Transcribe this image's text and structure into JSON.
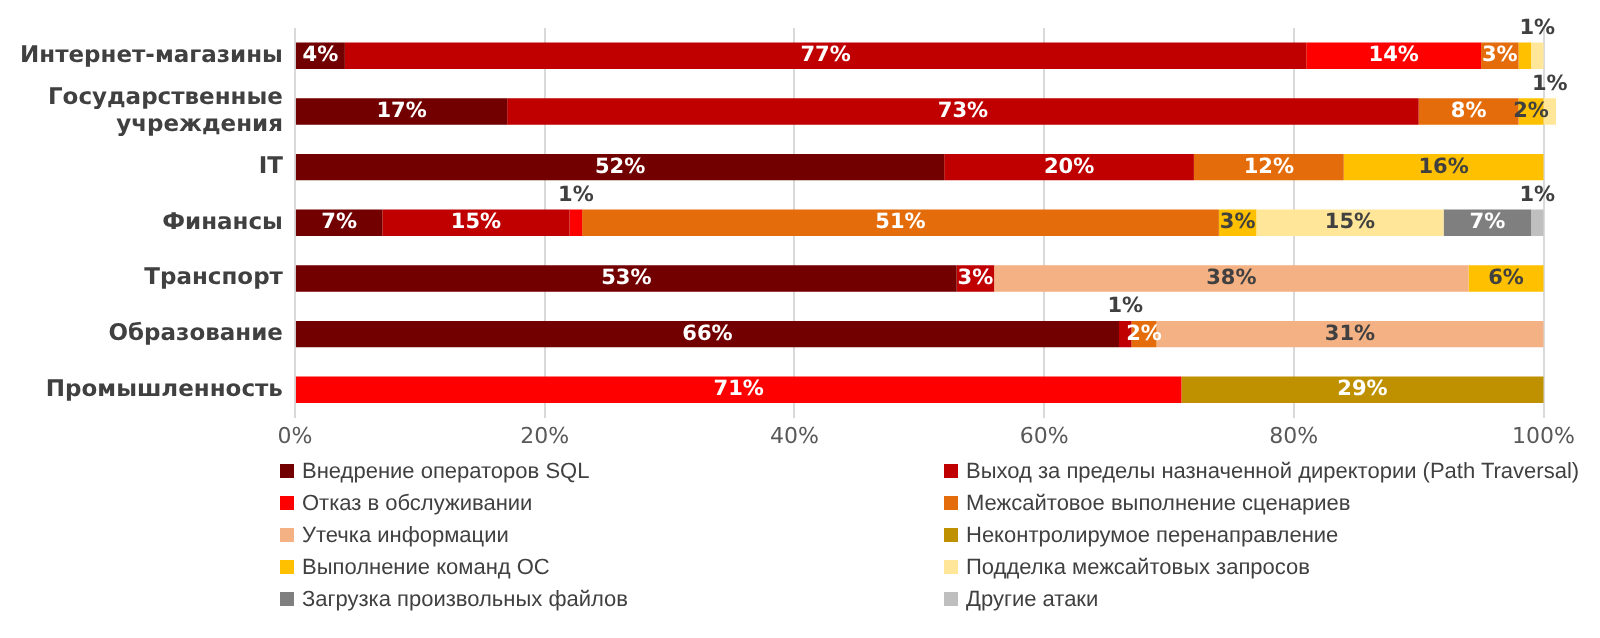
{
  "chart_data": {
    "type": "bar",
    "orientation": "horizontal",
    "stacked": true,
    "categories": [
      "Интернет-магазины",
      "Государственные учреждения",
      "IT",
      "Финансы",
      "Транспорт",
      "Образование",
      "Промышленность"
    ],
    "series": [
      {
        "name": "Внедрение операторов SQL",
        "color": "#720000",
        "values": [
          4,
          17,
          52,
          7,
          53,
          66,
          null
        ],
        "value_labels": [
          "4%",
          "17%",
          "52%",
          "7%",
          "53%",
          "66%",
          null
        ]
      },
      {
        "name": "Выход за пределы назначенной директории (Path Traversal)",
        "color": "#c00000",
        "values": [
          77,
          73,
          20,
          15,
          3,
          1,
          null
        ],
        "value_labels": [
          "77%",
          "73%",
          "20%",
          "15%",
          "3%",
          "1%",
          null
        ]
      },
      {
        "name": "Отказ в обслуживании",
        "color": "#ff0000",
        "values": [
          14,
          null,
          null,
          1,
          null,
          null,
          71
        ],
        "value_labels": [
          "14%",
          null,
          null,
          "1%",
          null,
          null,
          "71%"
        ]
      },
      {
        "name": "Межсайтовое выполнение сценариев",
        "color": "#e46c0a",
        "values": [
          3,
          8,
          12,
          51,
          null,
          2,
          null
        ],
        "value_labels": [
          "3%",
          "8%",
          "12%",
          "51%",
          null,
          "2%",
          null
        ]
      },
      {
        "name": "Утечка информации",
        "color": "#f4b183",
        "values": [
          null,
          null,
          null,
          null,
          38,
          31,
          null
        ],
        "value_labels": [
          null,
          null,
          null,
          null,
          "38%",
          "31%",
          null
        ]
      },
      {
        "name": "Неконтролирумое перенаправление",
        "color": "#bf9000",
        "values": [
          null,
          null,
          null,
          null,
          null,
          null,
          29
        ],
        "value_labels": [
          null,
          null,
          null,
          null,
          null,
          null,
          "29%"
        ]
      },
      {
        "name": "Выполнение команд ОС",
        "color": "#ffc000",
        "values": [
          1,
          2,
          16,
          3,
          6,
          null,
          null
        ],
        "value_labels": [
          null,
          "2%",
          "16%",
          "3%",
          "6%",
          null,
          null
        ]
      },
      {
        "name": "Подделка межсайтовых запросов",
        "color": "#ffe699",
        "values": [
          1,
          1,
          null,
          15,
          null,
          null,
          null
        ],
        "value_labels": [
          "1%",
          "1%",
          null,
          "15%",
          null,
          null,
          null
        ]
      },
      {
        "name": "Загрузка произвольных файлов",
        "color": "#7f7f7f",
        "values": [
          null,
          null,
          null,
          7,
          null,
          null,
          null
        ],
        "value_labels": [
          null,
          null,
          null,
          "7%",
          null,
          null,
          null
        ]
      },
      {
        "name": "Другие атаки",
        "color": "#bfbfbf",
        "values": [
          null,
          null,
          null,
          1,
          null,
          null,
          null
        ],
        "value_labels": [
          null,
          null,
          null,
          "1%",
          null,
          null,
          null
        ]
      }
    ],
    "xlim": [
      0,
      101
    ],
    "xticks": [
      {
        "value": 0,
        "label": "0%"
      },
      {
        "value": 20,
        "label": "20%"
      },
      {
        "value": 40,
        "label": "40%"
      },
      {
        "value": 60,
        "label": "60%"
      },
      {
        "value": 80,
        "label": "80%"
      },
      {
        "value": 100,
        "label": "100%"
      }
    ],
    "grid": "x",
    "legend": "bottom"
  }
}
